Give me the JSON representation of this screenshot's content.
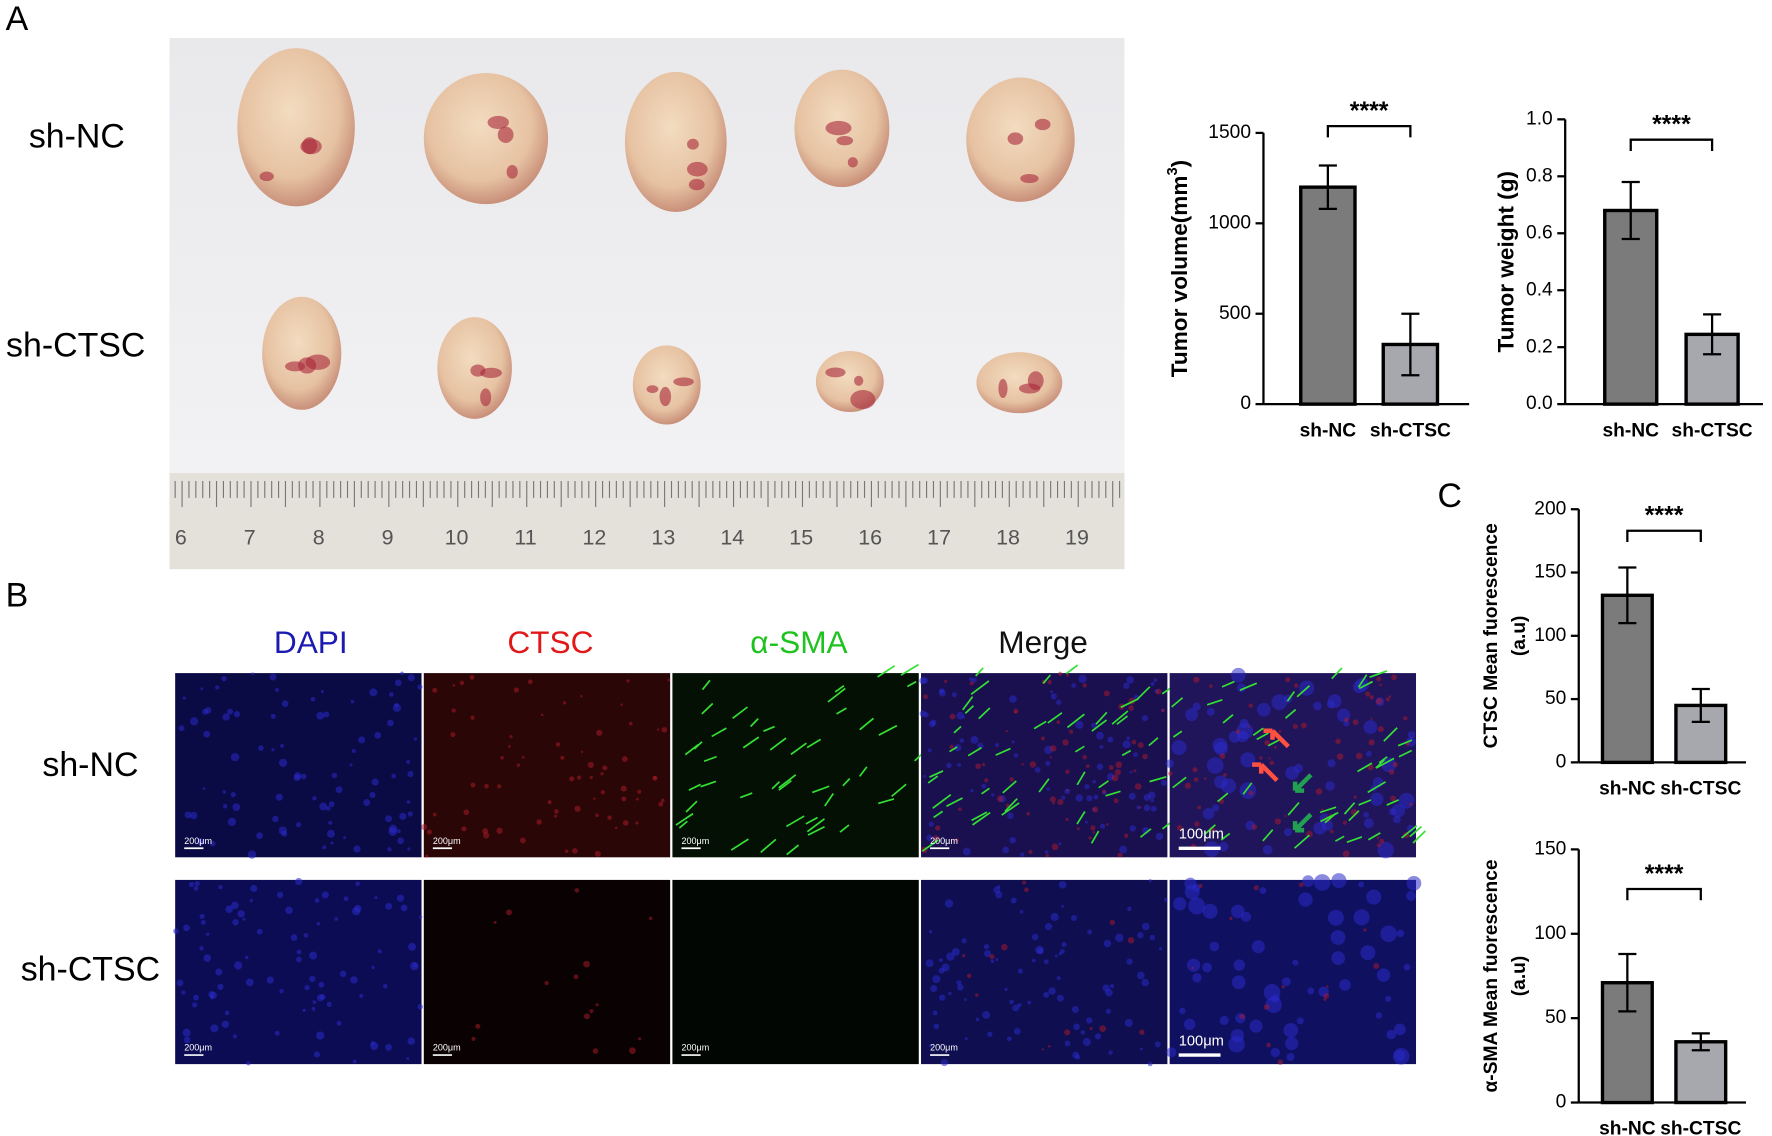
{
  "panel_labels": [
    "A",
    "B",
    "C"
  ],
  "panel_a": {
    "row_labels": [
      "sh-NC",
      "sh-CTSC"
    ],
    "ruler_numbers": [
      6,
      7,
      8,
      9,
      10,
      11,
      12,
      13,
      14,
      15,
      16,
      17,
      18,
      19
    ]
  },
  "panel_b": {
    "channels": [
      "DAPI",
      "CTSC",
      "α-SMA",
      "Merge"
    ],
    "row_labels": [
      "sh-NC",
      "sh-CTSC"
    ],
    "scale_labels": [
      [
        "200μm",
        "200μm",
        "200μm",
        "200μm",
        "100μm"
      ],
      [
        "200μm",
        "200μm",
        "200μm",
        "200μm",
        "100μm"
      ]
    ]
  },
  "chart_data": [
    {
      "type": "bar",
      "y_label": "Tumor volume(mm",
      "y_label_sup": "3",
      "y_label_end": ")",
      "categories": [
        "sh-NC",
        "sh-CTSC"
      ],
      "values": [
        1200,
        330
      ],
      "errors": [
        120,
        170
      ],
      "colors": [
        "#7b7b7b",
        "#a7a7ae"
      ],
      "ylim": [
        0,
        1500
      ],
      "yticks": [
        0,
        500,
        1000,
        1500
      ],
      "significance": "****"
    },
    {
      "type": "bar",
      "y_label": "Tumor weight (g)",
      "categories": [
        "sh-NC",
        "sh-CTSC"
      ],
      "values": [
        0.68,
        0.245
      ],
      "errors": [
        0.1,
        0.07
      ],
      "colors": [
        "#7b7b7b",
        "#a7a7ae"
      ],
      "ylim": [
        0,
        1.0
      ],
      "yticks": [
        {
          "value": 0,
          "label": "0.0"
        },
        0.2,
        0.4,
        0.6,
        0.8,
        {
          "value": 1,
          "label": "1.0"
        }
      ],
      "significance": "****"
    },
    {
      "type": "bar",
      "y_label": [
        "CTSC Mean fuorescence",
        "(a.u)"
      ],
      "categories": [
        "sh-NC",
        "sh-CTSC"
      ],
      "values": [
        132,
        45
      ],
      "errors": [
        22,
        13
      ],
      "colors": [
        "#7b7b7b",
        "#a7a7ae"
      ],
      "ylim": [
        0,
        200
      ],
      "yticks": [
        0,
        50,
        100,
        150,
        200
      ],
      "significance": "****"
    },
    {
      "type": "bar",
      "y_label": [
        "α-SMA Mean fuorescence",
        "(a.u)"
      ],
      "categories": [
        "sh-NC",
        "sh-CTSC"
      ],
      "values": [
        71,
        36
      ],
      "errors": [
        17,
        5
      ],
      "colors": [
        "#7b7b7b",
        "#a7a7ae"
      ],
      "ylim": [
        0,
        150
      ],
      "yticks": [
        0,
        50,
        100,
        150
      ],
      "significance": "****"
    }
  ]
}
